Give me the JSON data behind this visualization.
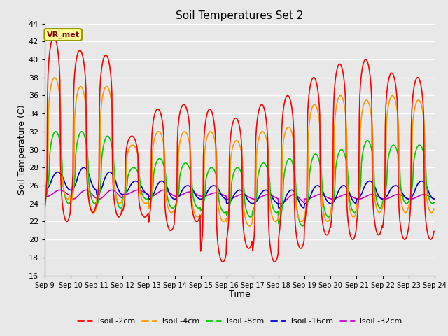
{
  "title": "Soil Temperatures Set 2",
  "xlabel": "Time",
  "ylabel": "Soil Temperature (C)",
  "ylim": [
    16,
    44
  ],
  "yticks": [
    16,
    18,
    20,
    22,
    24,
    26,
    28,
    30,
    32,
    34,
    36,
    38,
    40,
    42,
    44
  ],
  "x_labels": [
    "Sep 9",
    "Sep 10",
    "Sep 11",
    "Sep 12",
    "Sep 13",
    "Sep 14",
    "Sep 15",
    "Sep 16",
    "Sep 17",
    "Sep 18",
    "Sep 19",
    "Sep 20",
    "Sep 21",
    "Sep 22",
    "Sep 23",
    "Sep 24"
  ],
  "annotation_text": "VR_met",
  "annotation_box_facecolor": "#FFFF99",
  "annotation_box_edgecolor": "#999900",
  "annotation_text_color": "#880000",
  "bg_color": "#E8E8E8",
  "grid_color": "white",
  "series": {
    "Tsoil -2cm": {
      "color": "#FF0000",
      "lw": 1.2
    },
    "Tsoil -4cm": {
      "color": "#FF9900",
      "lw": 1.2
    },
    "Tsoil -8cm": {
      "color": "#00CC00",
      "lw": 1.2
    },
    "Tsoil -16cm": {
      "color": "#0000CC",
      "lw": 1.2
    },
    "Tsoil -32cm": {
      "color": "#CC00CC",
      "lw": 1.2
    }
  },
  "days": 15,
  "ppd": 48,
  "day_peaks_2cm": [
    42.5,
    41.0,
    40.5,
    31.5,
    34.5,
    35.0,
    34.5,
    33.5,
    35.0,
    36.0,
    38.0,
    39.5,
    40.0,
    38.5,
    38.0
  ],
  "day_troughs_2cm": [
    22.0,
    23.0,
    22.5,
    22.5,
    21.0,
    22.0,
    17.5,
    19.0,
    17.5,
    19.0,
    20.5,
    20.0,
    20.5,
    20.0,
    20.0
  ],
  "day_peaks_4cm": [
    38.0,
    37.0,
    37.0,
    30.5,
    32.0,
    32.0,
    32.0,
    31.0,
    32.0,
    32.5,
    35.0,
    36.0,
    35.5,
    36.0,
    35.5
  ],
  "day_troughs_4cm": [
    24.5,
    23.0,
    24.0,
    24.0,
    23.0,
    22.5,
    22.0,
    21.5,
    22.0,
    22.0,
    22.0,
    22.5,
    23.0,
    23.0,
    23.0
  ],
  "day_peaks_8cm": [
    32.0,
    32.0,
    31.5,
    28.0,
    29.0,
    28.5,
    28.0,
    28.0,
    28.5,
    29.0,
    29.5,
    30.0,
    31.0,
    30.5,
    30.5
  ],
  "day_troughs_8cm": [
    24.0,
    24.0,
    23.5,
    24.5,
    23.5,
    23.5,
    23.0,
    22.5,
    23.0,
    21.5,
    22.5,
    23.0,
    23.5,
    24.0,
    24.0
  ],
  "day_peaks_16cm": [
    27.5,
    28.0,
    27.5,
    26.5,
    26.5,
    26.0,
    26.0,
    25.5,
    25.5,
    25.5,
    26.0,
    26.0,
    26.5,
    26.0,
    26.5
  ],
  "day_troughs_16cm": [
    25.5,
    25.5,
    25.0,
    25.0,
    24.5,
    24.5,
    24.5,
    24.0,
    24.0,
    23.5,
    24.0,
    24.0,
    24.5,
    24.5,
    24.5
  ],
  "day_peaks_32cm": [
    25.5,
    25.5,
    25.5,
    25.5,
    25.5,
    25.3,
    25.2,
    25.0,
    25.0,
    25.0,
    25.0,
    25.0,
    25.0,
    25.0,
    25.0
  ],
  "day_troughs_32cm": [
    24.8,
    24.5,
    24.5,
    25.0,
    24.8,
    24.8,
    24.8,
    24.5,
    24.5,
    24.0,
    24.5,
    24.5,
    24.5,
    24.5,
    24.5
  ]
}
